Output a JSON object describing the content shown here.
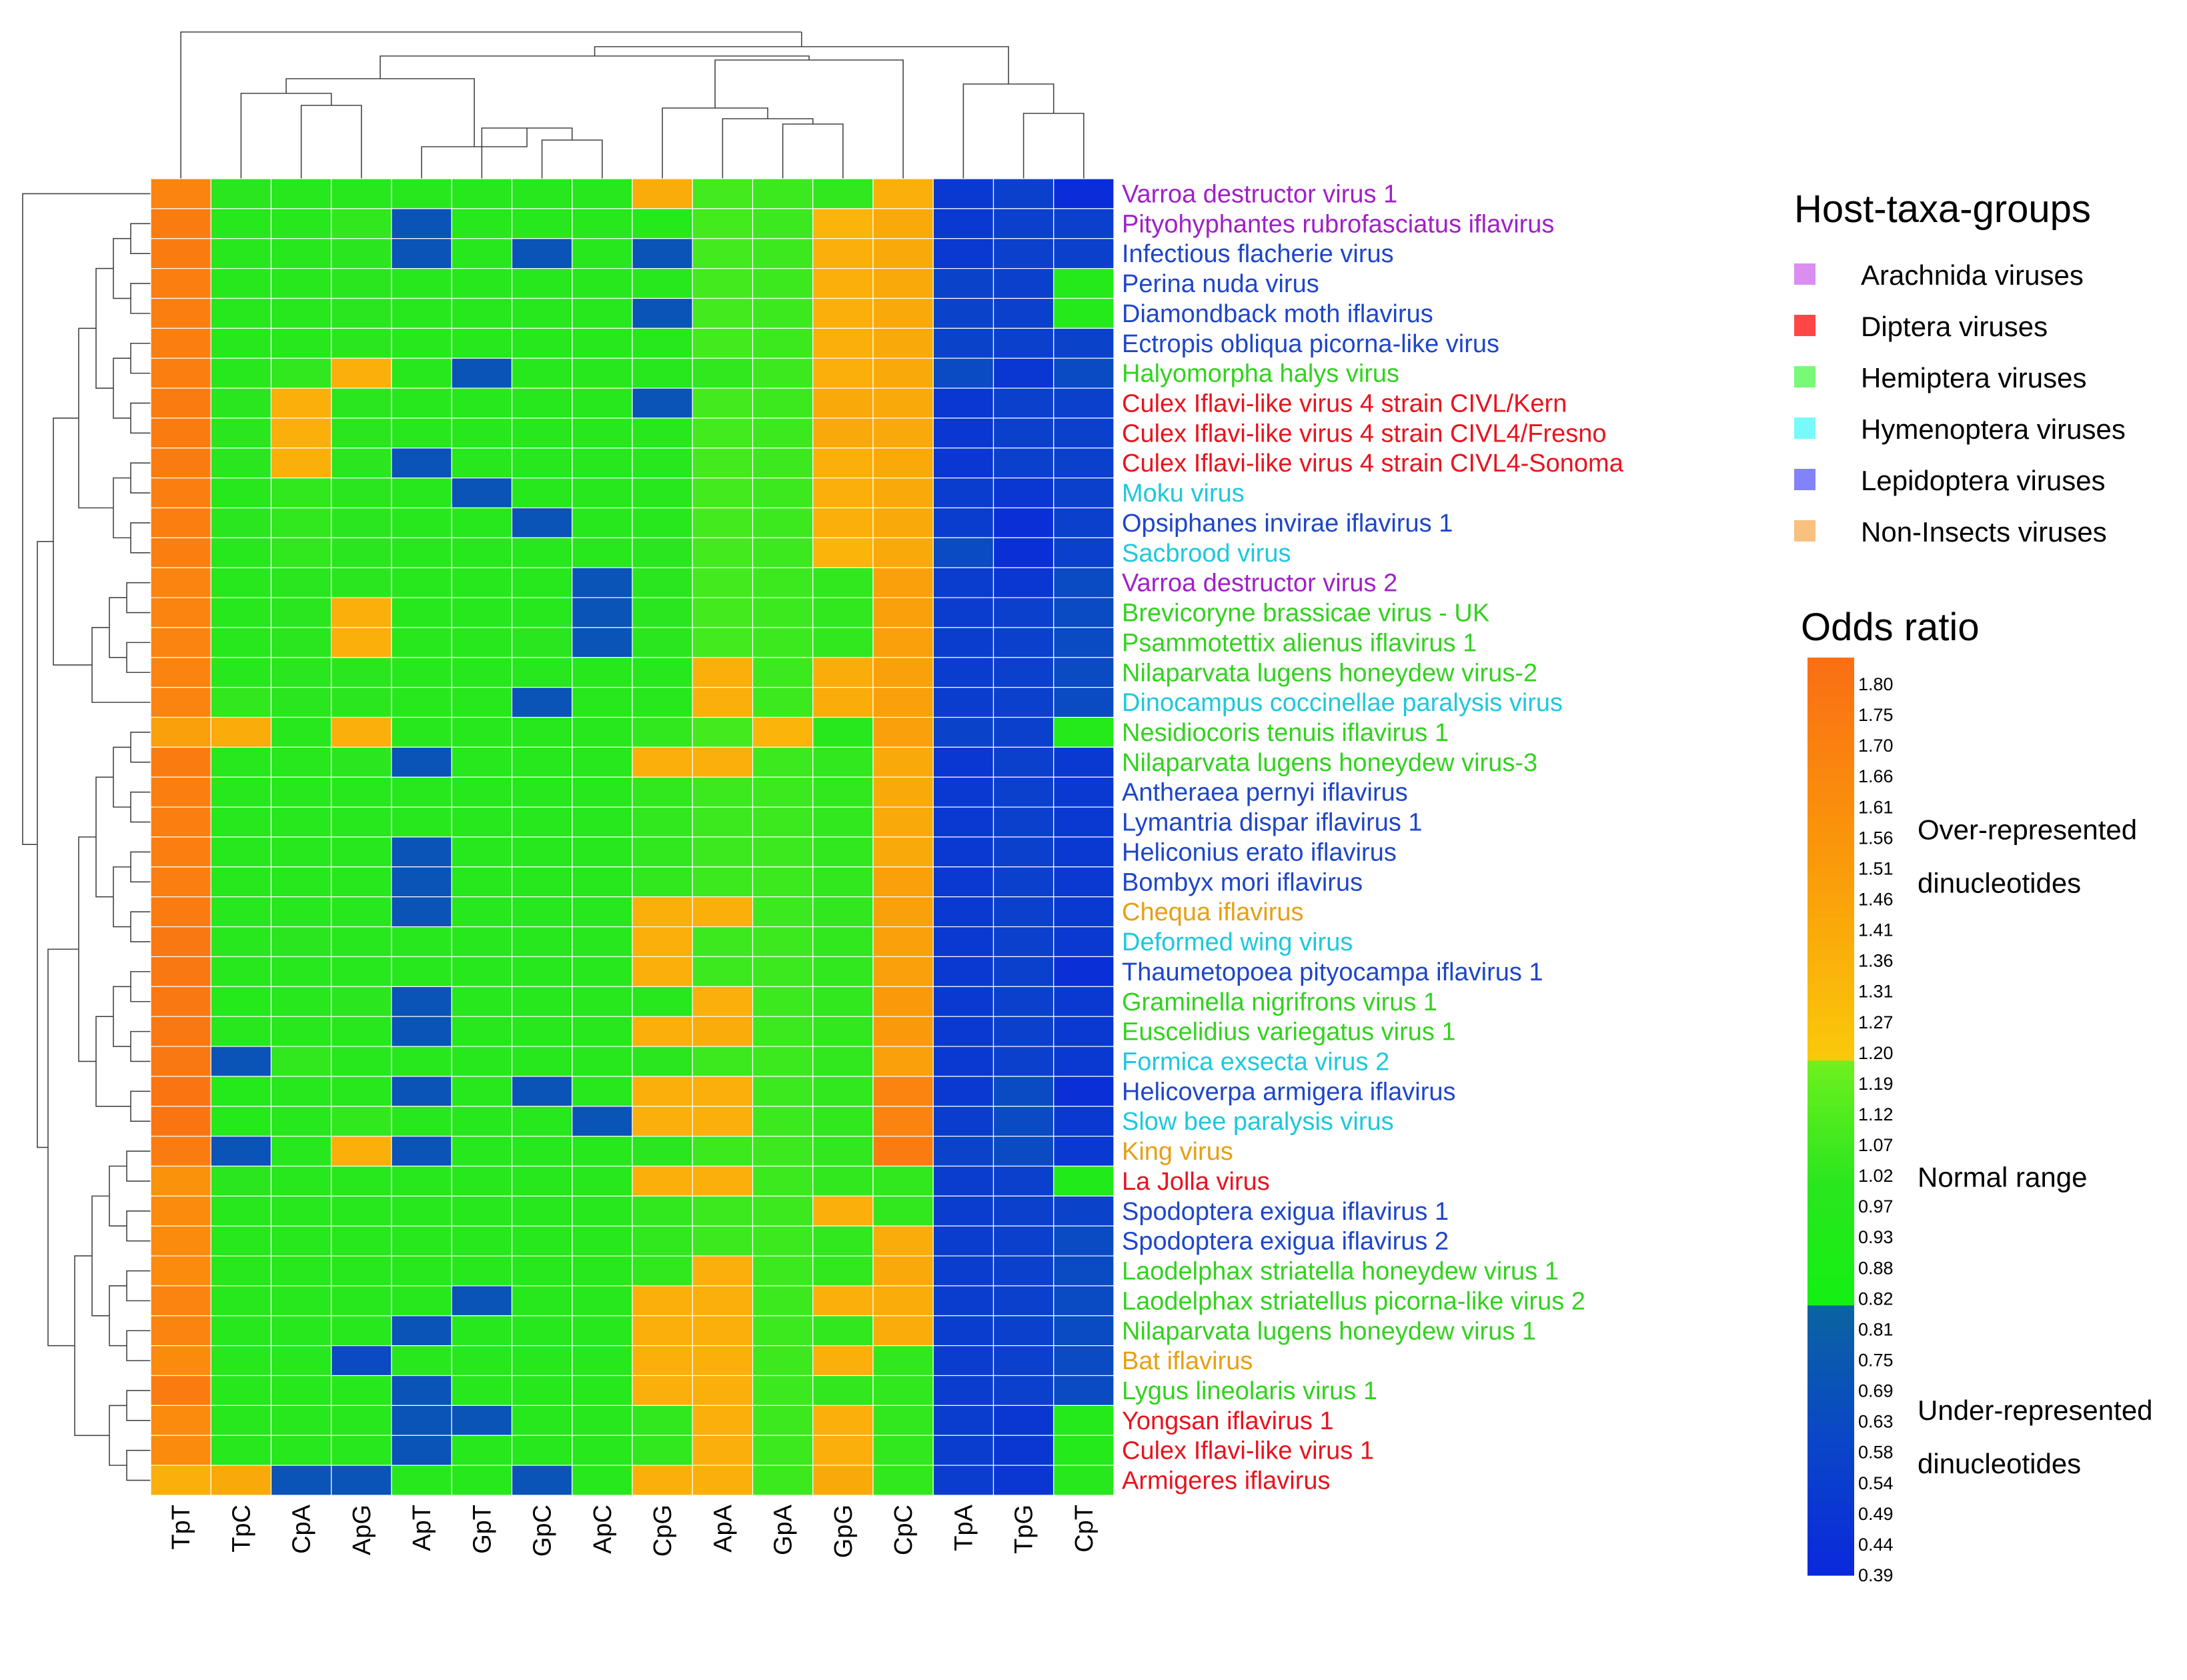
{
  "chart_data": {
    "type": "heatmap",
    "title": "",
    "columns": [
      "TpT",
      "TpC",
      "CpA",
      "ApG",
      "ApT",
      "GpT",
      "GpC",
      "ApC",
      "CpG",
      "ApA",
      "GpA",
      "GpG",
      "CpC",
      "TpA",
      "TpG",
      "CpT"
    ],
    "rows": [
      {
        "name": "Varroa destructor virus 1",
        "group": "Arachnida viruses"
      },
      {
        "name": "Pityohyphantes rubrofasciatus iflavirus",
        "group": "Arachnida viruses"
      },
      {
        "name": "Infectious flacherie virus",
        "group": "Lepidoptera viruses"
      },
      {
        "name": "Perina nuda virus",
        "group": "Lepidoptera viruses"
      },
      {
        "name": "Diamondback moth iflavirus",
        "group": "Lepidoptera viruses"
      },
      {
        "name": "Ectropis obliqua picorna-like virus",
        "group": "Lepidoptera viruses"
      },
      {
        "name": "Halyomorpha halys virus",
        "group": "Hemiptera viruses"
      },
      {
        "name": "Culex Iflavi-like virus 4 strain CIVL/Kern",
        "group": "Diptera viruses"
      },
      {
        "name": "Culex Iflavi-like virus 4 strain CIVL4/Fresno",
        "group": "Diptera viruses"
      },
      {
        "name": "Culex Iflavi-like virus 4 strain CIVL4-Sonoma",
        "group": "Diptera viruses"
      },
      {
        "name": "Moku virus",
        "group": "Hymenoptera viruses"
      },
      {
        "name": "Opsiphanes invirae iflavirus 1",
        "group": "Lepidoptera viruses"
      },
      {
        "name": "Sacbrood virus",
        "group": "Hymenoptera viruses"
      },
      {
        "name": "Varroa destructor virus 2",
        "group": "Arachnida viruses"
      },
      {
        "name": "Brevicoryne brassicae virus - UK",
        "group": "Hemiptera viruses"
      },
      {
        "name": "Psammotettix alienus iflavirus 1",
        "group": "Hemiptera viruses"
      },
      {
        "name": "Nilaparvata lugens honeydew virus-2",
        "group": "Hemiptera viruses"
      },
      {
        "name": "Dinocampus coccinellae paralysis virus",
        "group": "Hymenoptera viruses"
      },
      {
        "name": "Nesidiocoris tenuis iflavirus 1",
        "group": "Hemiptera viruses"
      },
      {
        "name": "Nilaparvata lugens honeydew virus-3",
        "group": "Hemiptera viruses"
      },
      {
        "name": "Antheraea pernyi iflavirus",
        "group": "Lepidoptera viruses"
      },
      {
        "name": "Lymantria dispar iflavirus 1",
        "group": "Lepidoptera viruses"
      },
      {
        "name": "Heliconius erato iflavirus",
        "group": "Lepidoptera viruses"
      },
      {
        "name": "Bombyx mori iflavirus",
        "group": "Lepidoptera viruses"
      },
      {
        "name": "Chequa iflavirus",
        "group": "Non-Insects viruses"
      },
      {
        "name": "Deformed wing virus",
        "group": "Hymenoptera viruses"
      },
      {
        "name": "Thaumetopoea pityocampa iflavirus 1",
        "group": "Lepidoptera viruses"
      },
      {
        "name": "Graminella nigrifrons virus 1",
        "group": "Hemiptera viruses"
      },
      {
        "name": "Euscelidius variegatus virus 1",
        "group": "Hemiptera viruses"
      },
      {
        "name": "Formica exsecta virus 2",
        "group": "Hymenoptera viruses"
      },
      {
        "name": "Helicoverpa armigera iflavirus",
        "group": "Lepidoptera viruses"
      },
      {
        "name": "Slow bee paralysis virus",
        "group": "Hymenoptera viruses"
      },
      {
        "name": "King virus",
        "group": "Non-Insects viruses"
      },
      {
        "name": "La Jolla virus",
        "group": "Diptera viruses"
      },
      {
        "name": "Spodoptera exigua iflavirus 1",
        "group": "Lepidoptera viruses"
      },
      {
        "name": "Spodoptera exigua iflavirus 2",
        "group": "Lepidoptera viruses"
      },
      {
        "name": "Laodelphax striatella honeydew virus 1",
        "group": "Hemiptera viruses"
      },
      {
        "name": "Laodelphax striatellus picorna-like virus 2",
        "group": "Hemiptera viruses"
      },
      {
        "name": "Nilaparvata lugens honeydew virus 1",
        "group": "Hemiptera viruses"
      },
      {
        "name": "Bat iflavirus",
        "group": "Non-Insects viruses"
      },
      {
        "name": "Lygus lineolaris virus 1",
        "group": "Hemiptera viruses"
      },
      {
        "name": "Yongsan iflavirus 1",
        "group": "Diptera viruses"
      },
      {
        "name": "Culex Iflavi-like virus 1",
        "group": "Diptera viruses"
      },
      {
        "name": "Armigeres iflavirus",
        "group": "Diptera viruses"
      }
    ],
    "values": [
      [
        1.66,
        1.0,
        0.97,
        0.97,
        0.97,
        0.97,
        0.97,
        0.97,
        1.38,
        1.07,
        1.05,
        1.02,
        1.36,
        0.51,
        0.56,
        0.42
      ],
      [
        1.72,
        0.97,
        0.97,
        1.02,
        0.69,
        0.97,
        0.97,
        0.97,
        0.95,
        1.07,
        1.05,
        1.33,
        1.4,
        0.51,
        0.56,
        0.56
      ],
      [
        1.72,
        0.97,
        0.97,
        1.0,
        0.69,
        0.97,
        0.69,
        0.97,
        0.69,
        1.07,
        1.05,
        1.36,
        1.4,
        0.51,
        0.56,
        0.56
      ],
      [
        1.7,
        0.97,
        0.97,
        1.0,
        0.97,
        0.97,
        0.97,
        0.97,
        0.97,
        1.07,
        1.05,
        1.36,
        1.4,
        0.58,
        0.56,
        0.95
      ],
      [
        1.7,
        0.97,
        0.97,
        1.0,
        0.97,
        0.97,
        0.97,
        0.97,
        0.69,
        1.07,
        1.05,
        1.36,
        1.4,
        0.58,
        0.56,
        0.95
      ],
      [
        1.7,
        0.97,
        0.97,
        1.0,
        0.97,
        0.97,
        0.97,
        0.97,
        0.97,
        1.07,
        1.05,
        1.36,
        1.4,
        0.58,
        0.56,
        0.58
      ],
      [
        1.7,
        0.97,
        1.02,
        1.36,
        0.97,
        0.69,
        0.97,
        0.97,
        0.97,
        1.02,
        1.05,
        1.36,
        1.4,
        0.63,
        0.49,
        0.63
      ],
      [
        1.72,
        1.0,
        1.36,
        1.0,
        0.97,
        0.97,
        0.97,
        0.97,
        0.69,
        1.07,
        1.05,
        1.4,
        1.4,
        0.49,
        0.56,
        0.56
      ],
      [
        1.72,
        1.0,
        1.36,
        1.0,
        0.97,
        0.97,
        0.97,
        0.97,
        0.97,
        1.07,
        1.05,
        1.4,
        1.4,
        0.49,
        0.56,
        0.56
      ],
      [
        1.72,
        1.0,
        1.36,
        1.0,
        0.69,
        0.97,
        0.97,
        0.97,
        0.97,
        1.07,
        1.05,
        1.36,
        1.4,
        0.49,
        0.56,
        0.56
      ],
      [
        1.7,
        0.97,
        1.02,
        1.0,
        0.97,
        0.69,
        0.97,
        0.97,
        0.97,
        1.07,
        1.05,
        1.36,
        1.4,
        0.54,
        0.49,
        0.56
      ],
      [
        1.7,
        1.0,
        1.02,
        1.0,
        0.97,
        0.97,
        0.69,
        0.97,
        0.97,
        1.07,
        1.05,
        1.36,
        1.4,
        0.54,
        0.44,
        0.56
      ],
      [
        1.7,
        0.97,
        1.02,
        1.0,
        0.97,
        0.97,
        0.97,
        0.97,
        1.0,
        1.07,
        1.05,
        1.33,
        1.4,
        0.63,
        0.44,
        0.56
      ],
      [
        1.66,
        0.97,
        1.0,
        1.0,
        0.97,
        0.97,
        0.97,
        0.69,
        1.0,
        1.07,
        1.05,
        1.02,
        1.46,
        0.54,
        0.49,
        0.63
      ],
      [
        1.66,
        0.97,
        1.0,
        1.36,
        0.97,
        0.97,
        0.97,
        0.69,
        1.0,
        1.07,
        1.05,
        1.02,
        1.46,
        0.54,
        0.56,
        0.63
      ],
      [
        1.66,
        0.97,
        1.0,
        1.36,
        0.97,
        0.97,
        1.0,
        0.69,
        1.0,
        1.07,
        1.05,
        1.02,
        1.46,
        0.54,
        0.56,
        0.63
      ],
      [
        1.66,
        0.97,
        1.0,
        1.0,
        0.97,
        0.97,
        0.97,
        0.97,
        0.97,
        1.36,
        1.05,
        1.38,
        1.46,
        0.54,
        0.56,
        0.63
      ],
      [
        1.66,
        1.02,
        1.0,
        1.0,
        0.97,
        0.97,
        0.69,
        0.97,
        0.97,
        1.36,
        1.05,
        1.38,
        1.46,
        0.54,
        0.56,
        0.63
      ],
      [
        1.46,
        1.38,
        0.97,
        1.36,
        0.97,
        0.97,
        0.97,
        0.97,
        1.02,
        1.07,
        1.33,
        0.97,
        1.46,
        0.58,
        0.56,
        0.95
      ],
      [
        1.72,
        0.97,
        0.97,
        1.0,
        0.69,
        0.97,
        0.97,
        0.97,
        1.36,
        1.36,
        1.05,
        1.02,
        1.4,
        0.49,
        0.56,
        0.51
      ],
      [
        1.7,
        0.97,
        0.97,
        0.97,
        0.97,
        0.97,
        0.97,
        0.97,
        1.02,
        1.05,
        1.05,
        1.02,
        1.4,
        0.51,
        0.56,
        0.51
      ],
      [
        1.7,
        0.97,
        0.97,
        0.97,
        0.97,
        0.97,
        0.97,
        0.97,
        1.02,
        1.05,
        1.05,
        1.02,
        1.4,
        0.51,
        0.56,
        0.51
      ],
      [
        1.7,
        0.97,
        0.97,
        0.97,
        0.69,
        0.97,
        0.97,
        0.97,
        1.02,
        1.05,
        1.05,
        1.02,
        1.4,
        0.51,
        0.56,
        0.51
      ],
      [
        1.7,
        0.97,
        0.97,
        0.97,
        0.69,
        0.97,
        0.97,
        0.97,
        1.02,
        1.05,
        1.05,
        1.02,
        1.46,
        0.51,
        0.56,
        0.51
      ],
      [
        1.72,
        0.97,
        0.97,
        0.97,
        0.69,
        0.97,
        0.97,
        0.97,
        1.36,
        1.36,
        1.05,
        1.02,
        1.46,
        0.51,
        0.56,
        0.51
      ],
      [
        1.75,
        0.97,
        1.0,
        0.97,
        0.97,
        0.97,
        0.97,
        0.97,
        1.36,
        1.05,
        1.05,
        1.02,
        1.46,
        0.51,
        0.56,
        0.51
      ],
      [
        1.75,
        0.97,
        0.97,
        0.97,
        0.97,
        0.97,
        0.97,
        0.97,
        1.36,
        1.05,
        1.05,
        1.02,
        1.46,
        0.51,
        0.56,
        0.44
      ],
      [
        1.75,
        0.95,
        0.97,
        1.0,
        0.69,
        0.97,
        0.97,
        0.97,
        0.97,
        1.36,
        1.05,
        1.02,
        1.51,
        0.51,
        0.56,
        0.51
      ],
      [
        1.75,
        0.97,
        0.97,
        0.97,
        0.69,
        0.97,
        0.97,
        0.97,
        1.36,
        1.38,
        1.05,
        1.02,
        1.51,
        0.51,
        0.56,
        0.51
      ],
      [
        1.75,
        0.69,
        1.02,
        0.97,
        0.97,
        0.97,
        0.97,
        0.97,
        1.0,
        1.05,
        1.05,
        1.02,
        1.46,
        0.51,
        0.56,
        0.51
      ],
      [
        1.77,
        0.95,
        0.97,
        0.97,
        0.69,
        0.97,
        0.69,
        0.97,
        1.36,
        1.36,
        1.05,
        1.02,
        1.66,
        0.51,
        0.63,
        0.44
      ],
      [
        1.77,
        0.95,
        0.97,
        1.02,
        0.97,
        0.97,
        0.97,
        0.69,
        1.36,
        1.36,
        1.05,
        1.02,
        1.66,
        0.54,
        0.63,
        0.51
      ],
      [
        1.72,
        0.69,
        0.97,
        1.36,
        0.69,
        0.97,
        0.97,
        0.97,
        1.0,
        1.05,
        1.05,
        1.02,
        1.72,
        0.58,
        0.63,
        0.51
      ],
      [
        1.56,
        1.0,
        0.97,
        0.97,
        0.97,
        0.97,
        0.97,
        0.97,
        1.36,
        1.36,
        1.05,
        1.02,
        1.02,
        0.54,
        0.56,
        0.93
      ],
      [
        1.61,
        0.97,
        0.97,
        0.97,
        0.97,
        0.97,
        0.97,
        0.97,
        1.02,
        1.05,
        1.05,
        1.36,
        1.02,
        0.54,
        0.56,
        0.58
      ],
      [
        1.61,
        0.97,
        0.97,
        0.97,
        0.97,
        0.97,
        0.97,
        0.97,
        1.02,
        1.05,
        1.05,
        1.02,
        1.38,
        0.54,
        0.56,
        0.63
      ],
      [
        1.61,
        0.97,
        0.97,
        0.97,
        0.97,
        0.97,
        0.97,
        0.97,
        1.02,
        1.36,
        1.05,
        1.02,
        1.4,
        0.54,
        0.56,
        0.63
      ],
      [
        1.66,
        0.97,
        0.97,
        0.97,
        0.97,
        0.69,
        0.97,
        0.97,
        1.36,
        1.36,
        1.05,
        1.36,
        1.38,
        0.54,
        0.56,
        0.63
      ],
      [
        1.66,
        0.97,
        0.97,
        0.97,
        0.69,
        0.97,
        0.97,
        0.97,
        1.36,
        1.36,
        1.05,
        1.02,
        1.38,
        0.54,
        0.56,
        0.63
      ],
      [
        1.61,
        0.97,
        0.97,
        0.63,
        0.97,
        0.97,
        0.97,
        0.97,
        1.36,
        1.36,
        1.05,
        1.36,
        1.02,
        0.54,
        0.56,
        0.63
      ],
      [
        1.72,
        0.97,
        0.97,
        0.97,
        0.69,
        0.97,
        0.97,
        0.97,
        1.36,
        1.36,
        1.05,
        1.02,
        1.02,
        0.54,
        0.56,
        0.63
      ],
      [
        1.61,
        0.97,
        0.97,
        0.97,
        0.69,
        0.69,
        0.97,
        0.97,
        1.02,
        1.36,
        1.05,
        1.36,
        1.02,
        0.54,
        0.49,
        0.95
      ],
      [
        1.61,
        0.97,
        0.97,
        0.97,
        0.69,
        0.97,
        0.97,
        0.97,
        1.02,
        1.36,
        1.05,
        1.36,
        1.02,
        0.54,
        0.49,
        0.95
      ],
      [
        1.36,
        1.4,
        0.69,
        0.69,
        0.97,
        0.97,
        0.69,
        0.97,
        1.36,
        1.36,
        1.05,
        1.4,
        1.02,
        0.54,
        0.49,
        0.97
      ]
    ],
    "group_colors": {
      "Arachnida viruses": "#a020c8",
      "Diptera viruses": "#e8141e",
      "Hemiptera viruses": "#32d21e",
      "Hymenoptera viruses": "#1ec8dc",
      "Lepidoptera viruses": "#1e46c8",
      "Non-Insects viruses": "#e6a014"
    },
    "legend": {
      "title": "Host-taxa-groups",
      "placement": "top-right",
      "items": [
        {
          "label": "Arachnida viruses",
          "color": "#d98ef0"
        },
        {
          "label": "Diptera viruses",
          "color": "#ff4646"
        },
        {
          "label": "Hemiptera viruses",
          "color": "#78fa78"
        },
        {
          "label": "Hymenoptera viruses",
          "color": "#78fafa"
        },
        {
          "label": "Lepidoptera viruses",
          "color": "#8282fa"
        },
        {
          "label": "Non-Insects viruses",
          "color": "#fac080"
        }
      ]
    },
    "colorbar": {
      "title": "Odds ratio",
      "ticks": [
        "1.80",
        "1.75",
        "1.70",
        "1.66",
        "1.61",
        "1.56",
        "1.51",
        "1.46",
        "1.41",
        "1.36",
        "1.31",
        "1.27",
        "1.20",
        "1.19",
        "1.12",
        "1.07",
        "1.02",
        "0.97",
        "0.93",
        "0.88",
        "0.82",
        "0.81",
        "0.75",
        "0.69",
        "0.63",
        "0.58",
        "0.54",
        "0.49",
        "0.44",
        "0.39"
      ],
      "range": [
        0.39,
        1.82
      ],
      "categories": [
        {
          "label_lines": [
            "Over-represented",
            "dinucleotides"
          ],
          "from": 1.2,
          "to": 1.82
        },
        {
          "label_lines": [
            "Normal range"
          ],
          "from": 0.82,
          "to": 1.2
        },
        {
          "label_lines": [
            "Under-represented",
            "dinucleotides"
          ],
          "from": 0.39,
          "to": 0.82
        }
      ]
    }
  }
}
